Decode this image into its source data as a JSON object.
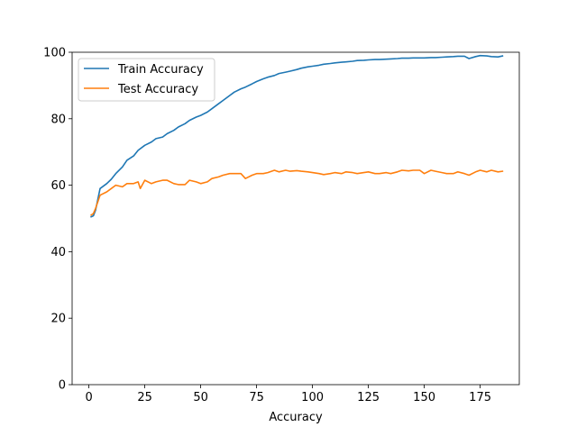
{
  "chart_data": {
    "type": "line",
    "title": "",
    "xlabel": "Accuracy",
    "ylabel": "",
    "xlim": [
      -7.5,
      192.5
    ],
    "ylim": [
      0,
      100
    ],
    "xticks": [
      0,
      25,
      50,
      75,
      100,
      125,
      150,
      175
    ],
    "yticks": [
      0,
      20,
      40,
      60,
      80,
      100
    ],
    "grid": false,
    "legend_position": "top-left",
    "series": [
      {
        "name": "Train Accuracy",
        "color": "#1f77b4",
        "x": [
          1,
          2,
          3,
          5,
          8,
          10,
          12,
          15,
          17,
          20,
          22,
          25,
          28,
          30,
          33,
          35,
          38,
          40,
          43,
          45,
          48,
          50,
          53,
          55,
          58,
          60,
          63,
          65,
          68,
          70,
          73,
          75,
          78,
          80,
          83,
          85,
          88,
          90,
          93,
          95,
          98,
          100,
          103,
          105,
          108,
          110,
          113,
          115,
          118,
          120,
          123,
          125,
          128,
          130,
          133,
          135,
          138,
          140,
          143,
          145,
          148,
          150,
          153,
          155,
          158,
          160,
          163,
          165,
          168,
          170,
          173,
          175,
          178,
          180,
          183,
          185
        ],
        "y": [
          50.5,
          50.8,
          52.5,
          59,
          60.5,
          61.8,
          63.5,
          65.5,
          67.5,
          68.8,
          70.5,
          72,
          73,
          74,
          74.5,
          75.5,
          76.5,
          77.5,
          78.5,
          79.5,
          80.5,
          81,
          82,
          83,
          84.5,
          85.5,
          87,
          88,
          89,
          89.5,
          90.5,
          91.2,
          92,
          92.5,
          93,
          93.6,
          94,
          94.3,
          94.8,
          95.2,
          95.6,
          95.8,
          96.1,
          96.4,
          96.6,
          96.8,
          97,
          97.1,
          97.3,
          97.5,
          97.6,
          97.7,
          97.8,
          97.8,
          97.9,
          98,
          98.1,
          98.2,
          98.2,
          98.3,
          98.3,
          98.3,
          98.4,
          98.4,
          98.5,
          98.6,
          98.7,
          98.8,
          98.8,
          98.1,
          98.7,
          99,
          98.9,
          98.7,
          98.6,
          98.9
        ]
      },
      {
        "name": "Test Accuracy",
        "color": "#ff7f0e",
        "x": [
          1,
          2,
          3,
          5,
          8,
          10,
          12,
          15,
          17,
          20,
          22,
          23,
          25,
          28,
          30,
          33,
          35,
          38,
          40,
          43,
          45,
          48,
          50,
          53,
          55,
          58,
          60,
          63,
          65,
          68,
          70,
          73,
          75,
          78,
          80,
          83,
          85,
          88,
          90,
          93,
          95,
          98,
          100,
          103,
          105,
          108,
          110,
          113,
          115,
          118,
          120,
          123,
          125,
          128,
          130,
          133,
          135,
          138,
          140,
          143,
          145,
          148,
          150,
          153,
          155,
          158,
          160,
          163,
          165,
          168,
          170,
          173,
          175,
          178,
          180,
          183,
          185
        ],
        "y": [
          51,
          51.5,
          53,
          57,
          58,
          59,
          60,
          59.5,
          60.5,
          60.5,
          61,
          59,
          61.5,
          60.5,
          61,
          61.5,
          61.5,
          60.5,
          60.2,
          60.2,
          61.5,
          61,
          60.5,
          61,
          62,
          62.5,
          63,
          63.5,
          63.5,
          63.5,
          62,
          63,
          63.5,
          63.5,
          63.8,
          64.5,
          64,
          64.5,
          64.2,
          64.4,
          64.2,
          64,
          63.8,
          63.5,
          63.2,
          63.5,
          63.8,
          63.5,
          64,
          63.8,
          63.5,
          63.8,
          64,
          63.5,
          63.5,
          63.8,
          63.5,
          64,
          64.5,
          64.3,
          64.5,
          64.5,
          63.5,
          64.5,
          64.2,
          63.8,
          63.5,
          63.5,
          64,
          63.5,
          63,
          64,
          64.5,
          64,
          64.5,
          64,
          64.2
        ]
      }
    ]
  }
}
